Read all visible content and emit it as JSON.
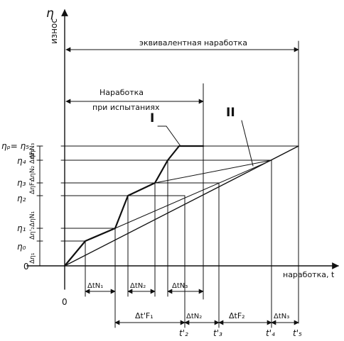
{
  "axes": {
    "y_symbol": "η",
    "y_label": "износ",
    "x_label": "наработка, t",
    "origin_y": "0",
    "origin_x": "0"
  },
  "spans": {
    "equivalent": "эквивалентная наработка",
    "test_line1": "Наработка",
    "test_line2": "при испытаниях"
  },
  "curves": {
    "one": "I",
    "two": "II"
  },
  "levels": {
    "eta0": "η₀",
    "eta1": "η₁",
    "eta2": "η₂",
    "eta3": "η₃",
    "eta4": "η₄",
    "eta5": "ηₚ= η₅"
  },
  "vertical_labels": {
    "a": "Δη₁",
    "b": "Δη'₂ΔηN₁",
    "c": "ΔηF₁",
    "d": "ΔηN₂ ΔηF₂",
    "e": "ΔηN₃"
  },
  "intervals": {
    "n1": "ΔtN₁",
    "n2": "ΔtN₂",
    "n3": "ΔtN₃",
    "f1": "Δt'F₁",
    "n2b": "ΔtN₂",
    "f2": "ΔtF₂",
    "n3b": "ΔtN₃"
  },
  "t_marks": {
    "t2": "t'₂",
    "t3": "t'₃",
    "t4": "t'₄",
    "t5": "t'₅"
  }
}
